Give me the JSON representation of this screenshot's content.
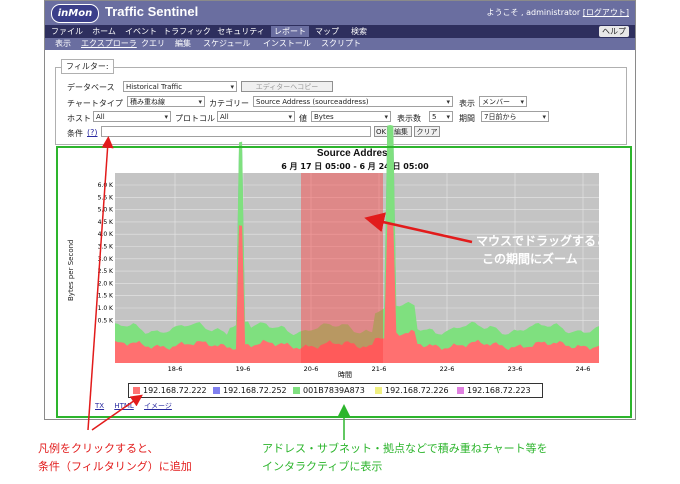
{
  "app": {
    "logo": "inMon",
    "title": "Traffic Sentinel",
    "welcome": "ようこそ , administrator",
    "logout": "[ログアウト]"
  },
  "menu": {
    "items": [
      {
        "label": "ファイル",
        "active": false
      },
      {
        "label": "ホーム",
        "active": false
      },
      {
        "label": "イベント",
        "active": false
      },
      {
        "label": "トラフィック",
        "active": false
      },
      {
        "label": "セキュリティ",
        "active": false
      },
      {
        "label": "レポート",
        "active": true
      },
      {
        "label": "マップ",
        "active": false
      },
      {
        "label": "検索",
        "active": false
      }
    ],
    "help": "ヘルプ"
  },
  "submenu": {
    "items": [
      {
        "label": "表示",
        "active": false
      },
      {
        "label": "エクスプローラ",
        "active": true
      },
      {
        "label": "クエリ",
        "active": false
      },
      {
        "label": "編集",
        "active": false
      },
      {
        "label": "スケジュール",
        "active": false
      },
      {
        "label": "インストール",
        "active": false
      },
      {
        "label": "スクリプト",
        "active": false
      }
    ]
  },
  "filter": {
    "legend": "フィルター:",
    "database_label": "データベース",
    "database_value": "Historical Traffic",
    "editor_copy_button": "エディターへコピー",
    "chart_type_label": "チャートタイプ",
    "chart_type_value": "積み重ね線",
    "category_label": "カテゴリー",
    "category_value": "Source Address (sourceaddress)",
    "display_label": "表示",
    "display_value": "メンバー",
    "host_label": "ホスト",
    "host_value": "All",
    "protocol_label": "プロトコル",
    "protocol_value": "All",
    "value_label": "値",
    "value_value": "Bytes",
    "count_label": "表示数",
    "count_value": "5",
    "period_label": "期間",
    "period_value": "7日前から",
    "condition_label": "条件",
    "condition_help": "(?)",
    "condition_value": "",
    "ok_button": "OK",
    "edit_button": "編集",
    "clear_button": "クリア"
  },
  "chart_data": {
    "type": "area",
    "title": "Source Address",
    "subtitle": "6 月 17 日 05:00 - 6 月 24 日 05:00",
    "xlabel": "時間",
    "ylabel": "Bytes per Second",
    "y_ticks": [
      "6.0 K",
      "5.5 K",
      "5.0 K",
      "4.5 K",
      "4.0 K",
      "3.5 K",
      "3.0 K",
      "2.5 K",
      "2.0 K",
      "1.5 K",
      "1.0 K",
      "0.5 K"
    ],
    "x_ticks": [
      "18-6",
      "19-6",
      "20-6",
      "21-6",
      "22-6",
      "23-6",
      "24-6"
    ],
    "grid": true,
    "zoom_range": [
      "20-6",
      "21-6"
    ],
    "series": [
      {
        "name": "192.168.72.222",
        "color": "#ff7373"
      },
      {
        "name": "192.168.72.252",
        "color": "#8080f0"
      },
      {
        "name": "001B7839A873",
        "color": "#80e080"
      },
      {
        "name": "192.168.72.226",
        "color": "#f0f080"
      },
      {
        "name": "192.168.72.223",
        "color": "#e080e0"
      }
    ]
  },
  "footer": {
    "links": [
      "TX",
      "HTML",
      "イメージ"
    ]
  },
  "annotations": {
    "drag_line1": "マウスでドラッグすると、",
    "drag_line2": "この期間にズーム",
    "legend_line1": "凡例をクリックすると、",
    "legend_line2": "条件（フィルタリング）に追加",
    "stack_line1": "アドレス・サブネット・拠点などで積み重ねチャート等を",
    "stack_line2": "インタラクティブに表示"
  }
}
